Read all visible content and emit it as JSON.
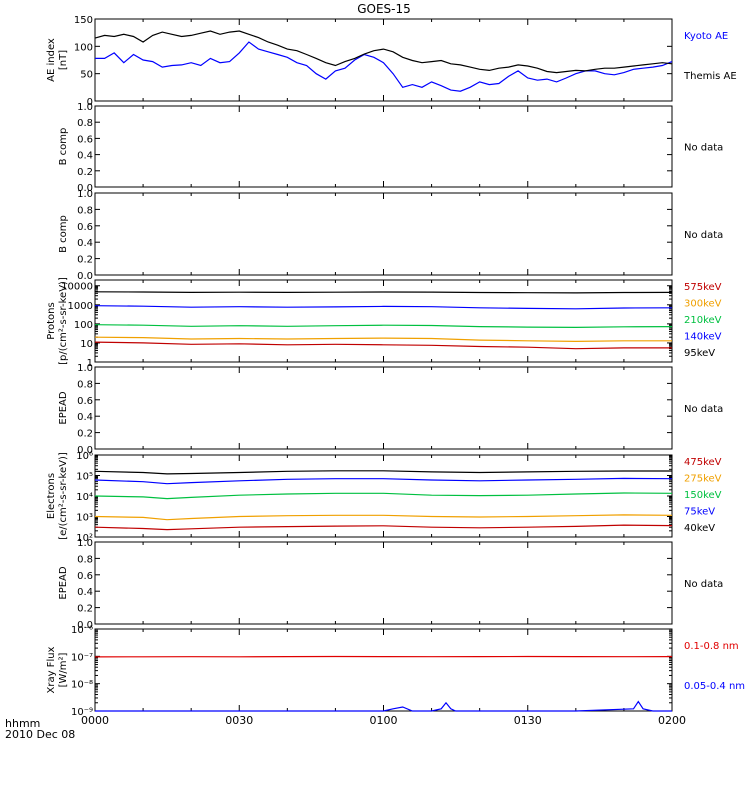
{
  "title": "GOES-15",
  "time_axis": {
    "ticks": [
      "0000",
      "0030",
      "0100",
      "0130",
      "0200"
    ],
    "format_label": "hhmm",
    "date_label": "2010 Dec 08"
  },
  "panels": {
    "ae": {
      "ylabel": [
        "AE index",
        "[nT]"
      ],
      "ticks": [
        "0",
        "50",
        "100",
        "150"
      ],
      "legend": [
        {
          "text": "Kyoto AE",
          "color": "#0000ff"
        },
        {
          "text": "Themis AE",
          "color": "#000000"
        }
      ]
    },
    "b1": {
      "ylabel": [
        "B comp"
      ],
      "ticks": [
        "0.0",
        "0.2",
        "0.4",
        "0.6",
        "0.8",
        "1.0"
      ],
      "note": "No data"
    },
    "b2": {
      "ylabel": [
        "B comp"
      ],
      "ticks": [
        "0.0",
        "0.2",
        "0.4",
        "0.6",
        "0.8",
        "1.0"
      ],
      "note": "No data"
    },
    "protons": {
      "ylabel": [
        "Protons",
        "[p/(cm²-s-sr-keV)]"
      ],
      "ticks": [
        "1",
        "10",
        "100",
        "1000",
        "10000"
      ],
      "legend": [
        {
          "text": "575keV",
          "color": "#c00000"
        },
        {
          "text": "300keV",
          "color": "#f0a000"
        },
        {
          "text": "210keV",
          "color": "#00c040"
        },
        {
          "text": "140keV",
          "color": "#0000ff"
        },
        {
          "text": "95keV",
          "color": "#000000"
        }
      ]
    },
    "epead1": {
      "ylabel": [
        "EPEAD"
      ],
      "ticks": [
        "0.0",
        "0.2",
        "0.4",
        "0.6",
        "0.8",
        "1.0"
      ],
      "note": "No data"
    },
    "electrons": {
      "ylabel": [
        "Electrons",
        "[e/(cm²-s-sr-keV)]"
      ],
      "ticks": [
        "10²",
        "10³",
        "10⁴",
        "10⁵",
        "10⁶"
      ],
      "legend": [
        {
          "text": "475keV",
          "color": "#c00000"
        },
        {
          "text": "275keV",
          "color": "#f0a000"
        },
        {
          "text": "150keV",
          "color": "#00c040"
        },
        {
          "text": "75keV",
          "color": "#0000ff"
        },
        {
          "text": "40keV",
          "color": "#000000"
        }
      ]
    },
    "epead2": {
      "ylabel": [
        "EPEAD"
      ],
      "ticks": [
        "0.0",
        "0.2",
        "0.4",
        "0.6",
        "0.8",
        "1.0"
      ],
      "note": "No data"
    },
    "xray": {
      "ylabel": [
        "Xray Flux",
        "[W/m²]"
      ],
      "ticks": [
        "10⁻⁹",
        "10⁻⁸",
        "10⁻⁷",
        "10⁻⁶"
      ],
      "legend": [
        {
          "text": "0.1-0.8 nm",
          "color": "#e00000"
        },
        {
          "text": "0.05-0.4 nm",
          "color": "#0000ff"
        }
      ]
    }
  },
  "chart_data": [
    {
      "type": "line",
      "panel": "ae",
      "x_unit": "minutes after 0000 UT",
      "xlim": [
        0,
        120
      ],
      "ylim": [
        0,
        150
      ],
      "series": [
        {
          "name": "Kyoto AE",
          "color": "#0000ff",
          "x": [
            0,
            2,
            4,
            6,
            8,
            10,
            12,
            14,
            16,
            18,
            20,
            22,
            24,
            26,
            28,
            30,
            32,
            34,
            36,
            38,
            40,
            42,
            44,
            46,
            48,
            50,
            52,
            54,
            56,
            58,
            60,
            62,
            64,
            66,
            68,
            70,
            72,
            74,
            76,
            78,
            80,
            82,
            84,
            86,
            88,
            90,
            92,
            94,
            96,
            98,
            100,
            102,
            104,
            106,
            108,
            110,
            112,
            114,
            116,
            118,
            120
          ],
          "y": [
            78,
            78,
            88,
            70,
            85,
            75,
            72,
            62,
            65,
            66,
            70,
            65,
            78,
            70,
            72,
            88,
            108,
            95,
            90,
            85,
            80,
            70,
            65,
            50,
            40,
            55,
            60,
            75,
            85,
            80,
            70,
            50,
            25,
            30,
            25,
            35,
            28,
            20,
            18,
            25,
            35,
            30,
            32,
            45,
            55,
            42,
            38,
            40,
            35,
            42,
            50,
            55,
            55,
            50,
            48,
            52,
            58,
            60,
            62,
            65,
            72
          ]
        },
        {
          "name": "Themis AE",
          "color": "#000000",
          "x": [
            0,
            2,
            4,
            6,
            8,
            10,
            12,
            14,
            16,
            18,
            20,
            22,
            24,
            26,
            28,
            30,
            32,
            34,
            36,
            38,
            40,
            42,
            44,
            46,
            48,
            50,
            52,
            54,
            56,
            58,
            60,
            62,
            64,
            66,
            68,
            70,
            72,
            74,
            76,
            78,
            80,
            82,
            84,
            86,
            88,
            90,
            92,
            94,
            96,
            98,
            100,
            102,
            104,
            106,
            108,
            110,
            112,
            114,
            116,
            118,
            120
          ],
          "y": [
            115,
            120,
            118,
            122,
            118,
            108,
            120,
            126,
            122,
            118,
            120,
            124,
            128,
            122,
            126,
            128,
            122,
            116,
            108,
            102,
            95,
            92,
            85,
            78,
            70,
            65,
            72,
            78,
            86,
            92,
            95,
            90,
            80,
            74,
            70,
            72,
            74,
            68,
            66,
            62,
            58,
            56,
            60,
            62,
            66,
            64,
            60,
            54,
            52,
            54,
            56,
            55,
            58,
            60,
            60,
            62,
            64,
            66,
            68,
            70,
            68
          ]
        }
      ]
    },
    {
      "type": "line",
      "panel": "protons",
      "x_unit": "minutes after 0000 UT",
      "xlim": [
        0,
        120
      ],
      "ylim": [
        1,
        20000
      ],
      "yscale": "log",
      "series": [
        {
          "name": "575keV",
          "color": "#c00000",
          "x": [
            0,
            10,
            20,
            30,
            40,
            50,
            60,
            70,
            80,
            90,
            100,
            110,
            120
          ],
          "y": [
            11,
            10,
            8.5,
            9,
            8,
            8.5,
            8,
            7.5,
            6.5,
            6,
            5,
            5.5,
            5.5
          ]
        },
        {
          "name": "300keV",
          "color": "#f0a000",
          "x": [
            0,
            10,
            20,
            30,
            40,
            50,
            60,
            70,
            80,
            90,
            100,
            110,
            120
          ],
          "y": [
            20,
            19,
            16,
            17,
            16,
            17,
            18,
            17,
            14,
            13,
            12,
            13,
            13
          ]
        },
        {
          "name": "210keV",
          "color": "#00c040",
          "x": [
            0,
            10,
            20,
            30,
            40,
            50,
            60,
            70,
            80,
            90,
            100,
            110,
            120
          ],
          "y": [
            90,
            85,
            75,
            80,
            75,
            80,
            85,
            82,
            72,
            68,
            65,
            70,
            72
          ]
        },
        {
          "name": "140keV",
          "color": "#0000ff",
          "x": [
            0,
            10,
            20,
            30,
            40,
            50,
            60,
            70,
            80,
            90,
            100,
            110,
            120
          ],
          "y": [
            900,
            850,
            750,
            800,
            750,
            780,
            820,
            800,
            700,
            650,
            620,
            680,
            700
          ]
        },
        {
          "name": "95keV",
          "color": "#000000",
          "x": [
            0,
            10,
            20,
            30,
            40,
            50,
            60,
            70,
            80,
            90,
            100,
            110,
            120
          ],
          "y": [
            4800,
            4700,
            4500,
            4600,
            4500,
            4600,
            4700,
            4650,
            4400,
            4300,
            4200,
            4400,
            4500
          ]
        }
      ]
    },
    {
      "type": "line",
      "panel": "electrons",
      "x_unit": "minutes after 0000 UT",
      "xlim": [
        0,
        120
      ],
      "ylim": [
        100,
        1000000
      ],
      "yscale": "log",
      "series": [
        {
          "name": "475keV",
          "color": "#c00000",
          "x": [
            0,
            10,
            15,
            20,
            30,
            40,
            50,
            60,
            70,
            80,
            90,
            100,
            110,
            120
          ],
          "y": [
            300,
            260,
            230,
            250,
            300,
            320,
            340,
            350,
            300,
            280,
            300,
            330,
            380,
            360
          ]
        },
        {
          "name": "275keV",
          "color": "#f0a000",
          "x": [
            0,
            10,
            15,
            20,
            30,
            40,
            50,
            60,
            70,
            80,
            90,
            100,
            110,
            120
          ],
          "y": [
            1000,
            900,
            700,
            800,
            1000,
            1100,
            1150,
            1150,
            1000,
            950,
            1000,
            1100,
            1200,
            1150
          ]
        },
        {
          "name": "150keV",
          "color": "#00c040",
          "x": [
            0,
            10,
            15,
            20,
            30,
            40,
            50,
            60,
            70,
            80,
            90,
            100,
            110,
            120
          ],
          "y": [
            10000,
            9000,
            7500,
            8500,
            11000,
            12500,
            13500,
            13500,
            11000,
            10500,
            11000,
            12500,
            14000,
            13500
          ]
        },
        {
          "name": "75keV",
          "color": "#0000ff",
          "x": [
            0,
            10,
            15,
            20,
            30,
            40,
            50,
            60,
            70,
            80,
            90,
            100,
            110,
            120
          ],
          "y": [
            60000,
            50000,
            40000,
            45000,
            55000,
            65000,
            70000,
            70000,
            60000,
            55000,
            60000,
            65000,
            72000,
            70000
          ]
        },
        {
          "name": "40keV",
          "color": "#000000",
          "x": [
            0,
            10,
            15,
            20,
            30,
            40,
            50,
            60,
            70,
            80,
            90,
            100,
            110,
            120
          ],
          "y": [
            160000,
            140000,
            120000,
            125000,
            140000,
            160000,
            170000,
            170000,
            150000,
            140000,
            150000,
            160000,
            165000,
            165000
          ]
        }
      ]
    },
    {
      "type": "line",
      "panel": "xray",
      "x_unit": "minutes after 0000 UT",
      "xlim": [
        0,
        120
      ],
      "ylim": [
        1e-09,
        1e-06
      ],
      "yscale": "log",
      "series": [
        {
          "name": "0.1-0.8 nm",
          "color": "#e00000",
          "x": [
            0,
            10,
            20,
            30,
            40,
            50,
            60,
            70,
            80,
            90,
            100,
            110,
            120
          ],
          "y": [
            9.5e-08,
            9.6e-08,
            9.7e-08,
            9.6e-08,
            9.8e-08,
            9.9e-08,
            9.8e-08,
            9.7e-08,
            9.8e-08,
            9.9e-08,
            9.8e-08,
            9.7e-08,
            9.8e-08
          ]
        },
        {
          "name": "0.05-0.4 nm",
          "color": "#0000ff",
          "x": [
            0,
            20,
            40,
            60,
            62,
            64,
            66,
            70,
            72,
            73,
            74,
            75,
            77,
            80,
            100,
            112,
            113,
            114,
            116,
            118,
            120
          ],
          "y": [
            1e-09,
            1e-09,
            1e-09,
            1e-09,
            1.2e-09,
            1.4e-09,
            1e-09,
            1e-09,
            1.2e-09,
            2e-09,
            1.2e-09,
            1e-09,
            1e-09,
            1e-09,
            1e-09,
            1.2e-09,
            2.2e-09,
            1.2e-09,
            1e-09,
            1e-09,
            1e-09
          ]
        }
      ]
    }
  ]
}
